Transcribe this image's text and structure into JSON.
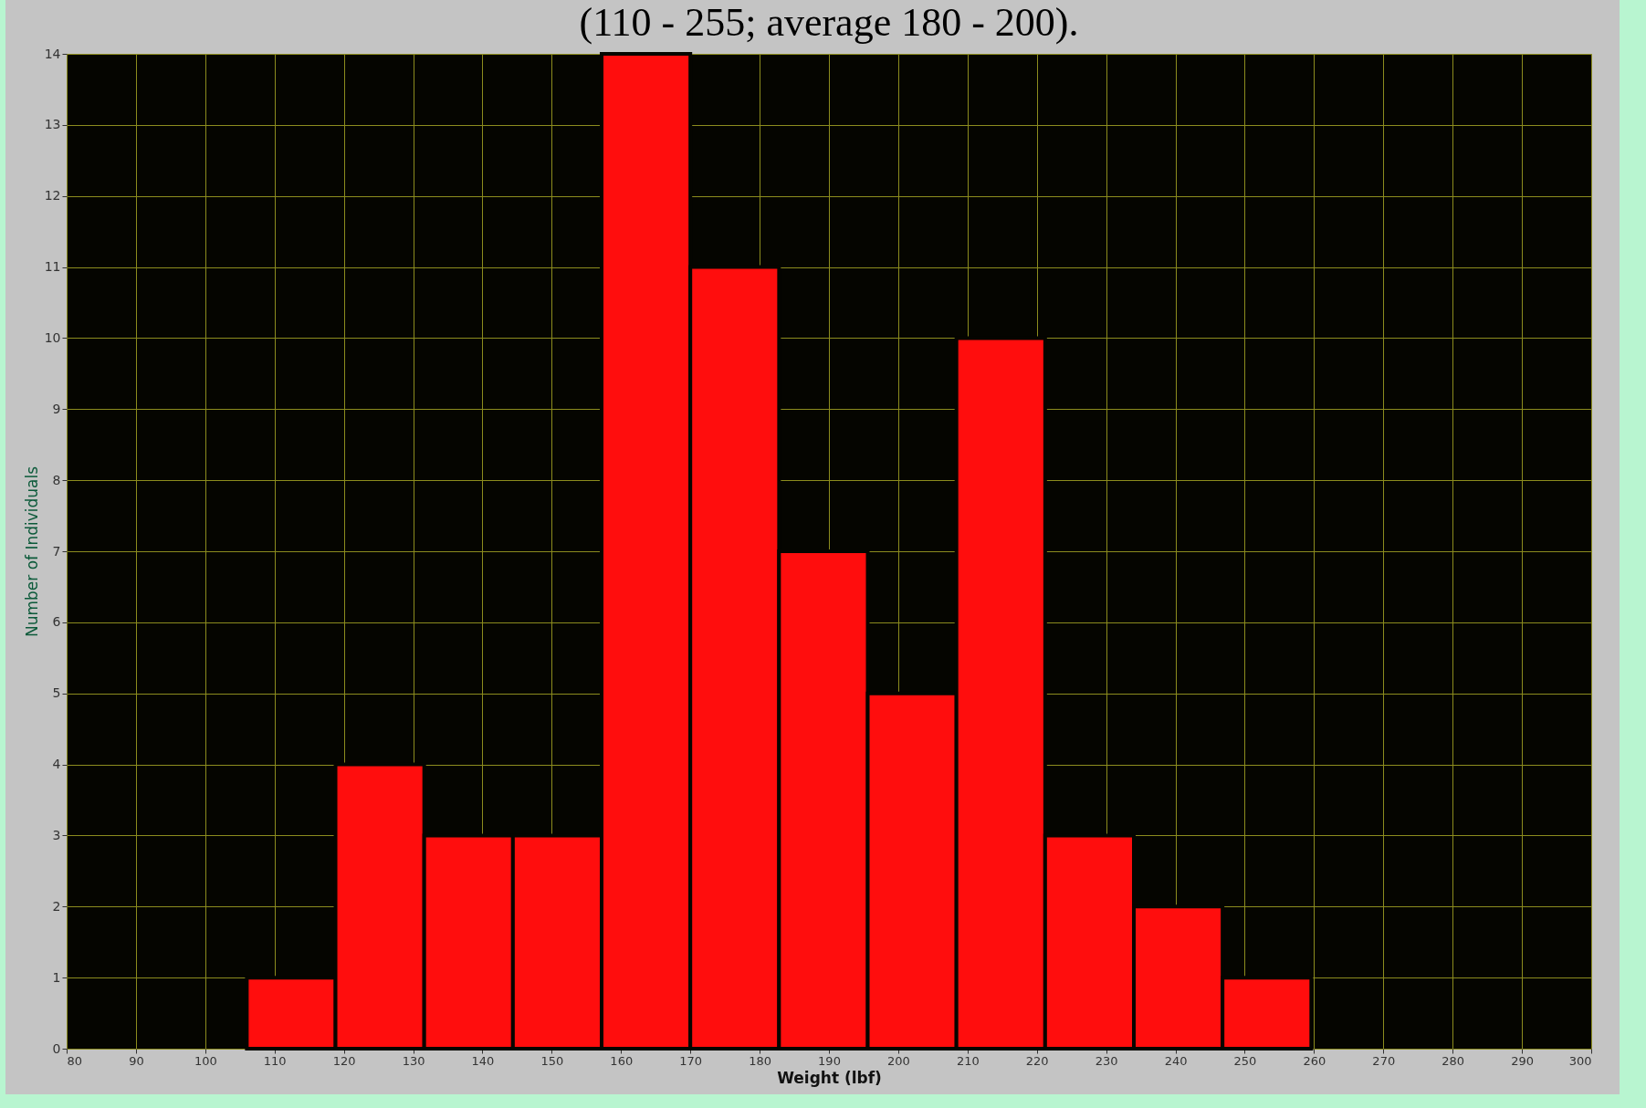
{
  "chart_data": {
    "type": "histogram",
    "title": "(110 - 255; average 180 - 200).",
    "xlabel": "Weight (lbf)",
    "ylabel": "Number of Individuals",
    "bins": [
      106,
      118.8,
      131.6,
      144.4,
      157.2,
      170,
      182.8,
      195.6,
      208.4,
      221.2,
      234,
      246.8,
      259.6
    ],
    "values": [
      1,
      4,
      3,
      3,
      14,
      11,
      7,
      5,
      10,
      3,
      2,
      1
    ],
    "color": "#ff0d0d",
    "xlim": [
      80,
      300
    ],
    "xticks": [
      80,
      90,
      100,
      110,
      120,
      130,
      140,
      150,
      160,
      170,
      180,
      190,
      200,
      210,
      220,
      230,
      240,
      250,
      260,
      270,
      280,
      290,
      300
    ],
    "ylim": [
      0,
      14
    ],
    "yticks": [
      0,
      1,
      2,
      3,
      4,
      5,
      6,
      7,
      8,
      9,
      10,
      11,
      12,
      13,
      14
    ],
    "grid": true
  }
}
